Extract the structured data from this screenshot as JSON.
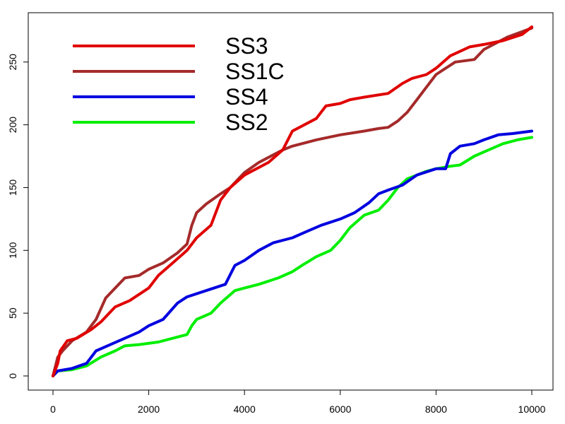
{
  "chart_data": {
    "type": "line",
    "title": "",
    "xlabel": "",
    "ylabel": "",
    "xlim": [
      0,
      10000
    ],
    "ylim": [
      0,
      278
    ],
    "x_ticks": [
      0,
      2000,
      4000,
      6000,
      8000,
      10000
    ],
    "y_ticks": [
      0,
      50,
      100,
      150,
      200,
      250
    ],
    "x_tick_labels": [
      "0",
      "2000",
      "4000",
      "6000",
      "8000",
      "10000"
    ],
    "y_tick_labels": [
      "0",
      "50",
      "100",
      "150",
      "200",
      "250"
    ],
    "grid": false,
    "legend_position": "top-left",
    "series": [
      {
        "name": "SS3",
        "color": "#e00000",
        "points": [
          [
            0,
            0
          ],
          [
            100,
            10
          ],
          [
            150,
            20
          ],
          [
            300,
            28
          ],
          [
            500,
            30
          ],
          [
            800,
            37
          ],
          [
            1000,
            43
          ],
          [
            1300,
            55
          ],
          [
            1600,
            60
          ],
          [
            2000,
            70
          ],
          [
            2200,
            80
          ],
          [
            2500,
            90
          ],
          [
            2800,
            100
          ],
          [
            3000,
            110
          ],
          [
            3300,
            120
          ],
          [
            3500,
            140
          ],
          [
            3700,
            150
          ],
          [
            4000,
            160
          ],
          [
            4500,
            170
          ],
          [
            4800,
            180
          ],
          [
            5000,
            195
          ],
          [
            5500,
            205
          ],
          [
            5700,
            215
          ],
          [
            6000,
            217
          ],
          [
            6200,
            220
          ],
          [
            6500,
            222
          ],
          [
            7000,
            225
          ],
          [
            7300,
            233
          ],
          [
            7500,
            237
          ],
          [
            7800,
            240
          ],
          [
            8000,
            245
          ],
          [
            8300,
            255
          ],
          [
            8700,
            262
          ],
          [
            9000,
            264
          ],
          [
            9400,
            267
          ],
          [
            9800,
            272
          ],
          [
            10000,
            278
          ]
        ]
      },
      {
        "name": "SS1C",
        "color": "#a52a2a",
        "points": [
          [
            0,
            0
          ],
          [
            100,
            15
          ],
          [
            200,
            20
          ],
          [
            400,
            28
          ],
          [
            700,
            35
          ],
          [
            900,
            45
          ],
          [
            1100,
            62
          ],
          [
            1300,
            70
          ],
          [
            1500,
            78
          ],
          [
            1800,
            80
          ],
          [
            2000,
            85
          ],
          [
            2300,
            90
          ],
          [
            2600,
            98
          ],
          [
            2800,
            105
          ],
          [
            2900,
            120
          ],
          [
            3000,
            130
          ],
          [
            3200,
            137
          ],
          [
            3500,
            145
          ],
          [
            3700,
            150
          ],
          [
            4000,
            162
          ],
          [
            4300,
            170
          ],
          [
            4800,
            180
          ],
          [
            5000,
            183
          ],
          [
            5500,
            188
          ],
          [
            6000,
            192
          ],
          [
            6500,
            195
          ],
          [
            6800,
            197
          ],
          [
            7000,
            198
          ],
          [
            7200,
            203
          ],
          [
            7400,
            210
          ],
          [
            7600,
            220
          ],
          [
            7800,
            230
          ],
          [
            8000,
            240
          ],
          [
            8200,
            245
          ],
          [
            8400,
            250
          ],
          [
            8800,
            252
          ],
          [
            9000,
            260
          ],
          [
            9500,
            270
          ],
          [
            10000,
            277
          ]
        ]
      },
      {
        "name": "SS4",
        "color": "#0000e0",
        "points": [
          [
            0,
            0
          ],
          [
            100,
            4
          ],
          [
            400,
            6
          ],
          [
            700,
            10
          ],
          [
            900,
            20
          ],
          [
            1200,
            25
          ],
          [
            1500,
            30
          ],
          [
            1800,
            35
          ],
          [
            2000,
            40
          ],
          [
            2300,
            45
          ],
          [
            2600,
            58
          ],
          [
            2800,
            63
          ],
          [
            3200,
            68
          ],
          [
            3600,
            73
          ],
          [
            3800,
            88
          ],
          [
            4000,
            92
          ],
          [
            4300,
            100
          ],
          [
            4600,
            106
          ],
          [
            5000,
            110
          ],
          [
            5300,
            115
          ],
          [
            5600,
            120
          ],
          [
            6000,
            125
          ],
          [
            6300,
            130
          ],
          [
            6600,
            138
          ],
          [
            6800,
            145
          ],
          [
            7000,
            148
          ],
          [
            7300,
            152
          ],
          [
            7600,
            160
          ],
          [
            8000,
            165
          ],
          [
            8200,
            165
          ],
          [
            8300,
            177
          ],
          [
            8500,
            183
          ],
          [
            8800,
            185
          ],
          [
            9000,
            188
          ],
          [
            9300,
            192
          ],
          [
            9600,
            193
          ],
          [
            10000,
            195
          ]
        ]
      },
      {
        "name": "SS2",
        "color": "#00ee00",
        "points": [
          [
            0,
            0
          ],
          [
            100,
            4
          ],
          [
            400,
            5
          ],
          [
            700,
            8
          ],
          [
            1000,
            15
          ],
          [
            1300,
            20
          ],
          [
            1500,
            24
          ],
          [
            1800,
            25
          ],
          [
            2200,
            27
          ],
          [
            2500,
            30
          ],
          [
            2800,
            33
          ],
          [
            2900,
            40
          ],
          [
            3000,
            45
          ],
          [
            3300,
            50
          ],
          [
            3500,
            58
          ],
          [
            3800,
            68
          ],
          [
            4000,
            70
          ],
          [
            4300,
            73
          ],
          [
            4700,
            78
          ],
          [
            5000,
            83
          ],
          [
            5200,
            88
          ],
          [
            5500,
            95
          ],
          [
            5800,
            100
          ],
          [
            6000,
            108
          ],
          [
            6200,
            118
          ],
          [
            6500,
            128
          ],
          [
            6800,
            132
          ],
          [
            7000,
            140
          ],
          [
            7200,
            150
          ],
          [
            7400,
            157
          ],
          [
            7600,
            160
          ],
          [
            7800,
            163
          ],
          [
            8000,
            165
          ],
          [
            8300,
            167
          ],
          [
            8500,
            168
          ],
          [
            8800,
            175
          ],
          [
            9100,
            180
          ],
          [
            9400,
            185
          ],
          [
            9700,
            188
          ],
          [
            10000,
            190
          ]
        ]
      }
    ]
  }
}
